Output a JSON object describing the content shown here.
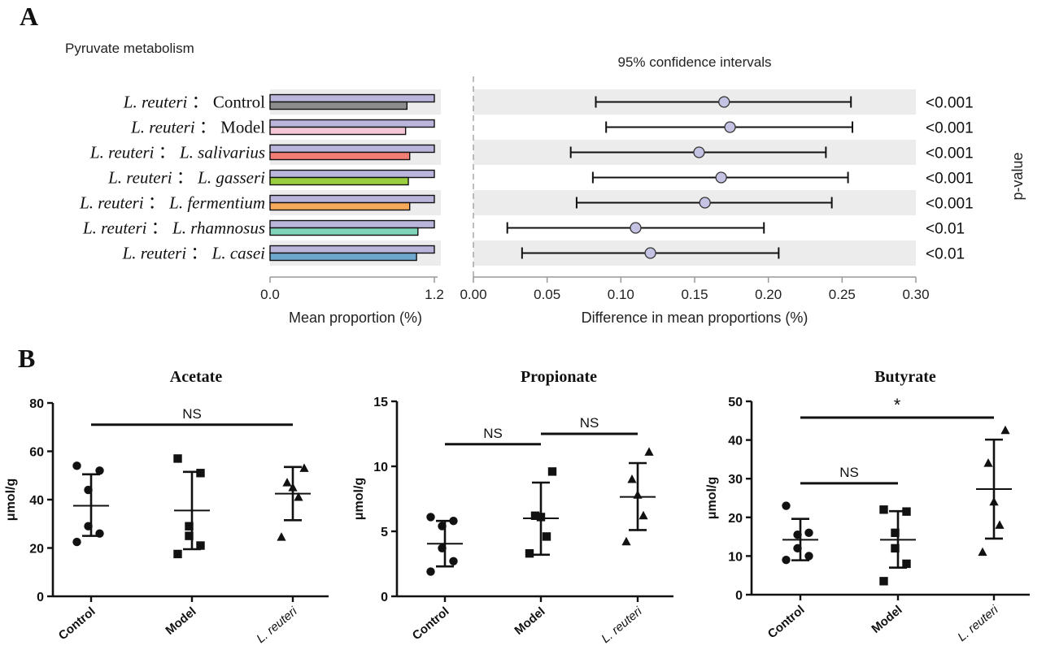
{
  "panel_a": {
    "letter": "A",
    "subtitle": "Pyruvate metabolism",
    "ci_title": "95% confidence intervals",
    "left_xlabel": "Mean proportion (%)",
    "right_xlabel": "Difference in mean proportions (%)",
    "pvalue_label": "p-value"
  },
  "panel_b": {
    "letter": "B"
  },
  "chart_data": [
    {
      "type": "bar",
      "xlabel": "Mean proportion (%)",
      "xlim": [
        0.0,
        1.2
      ],
      "xticks": [
        "0.0",
        "1.2"
      ],
      "comparison_separator": "：",
      "rows": [
        {
          "a": "L. reuteri",
          "b": "Control",
          "b_italic": false,
          "value_a": 1.2,
          "value_b": 1.0,
          "color_b": "#8c8c8c"
        },
        {
          "a": "L. reuteri",
          "b": "Model",
          "b_italic": false,
          "value_a": 1.2,
          "value_b": 0.99,
          "color_b": "#f4c6d6"
        },
        {
          "a": "L. reuteri",
          "b": "L. salivarius",
          "b_italic": true,
          "value_a": 1.2,
          "value_b": 1.02,
          "color_b": "#f27d74"
        },
        {
          "a": "L. reuteri",
          "b": "L. gasseri",
          "b_italic": true,
          "value_a": 1.2,
          "value_b": 1.01,
          "color_b": "#9ccf3f"
        },
        {
          "a": "L. reuteri",
          "b": "L. fermentium",
          "b_italic": true,
          "value_a": 1.2,
          "value_b": 1.02,
          "color_b": "#f5a95a"
        },
        {
          "a": "L. reuteri",
          "b": "L. rhamnosus",
          "b_italic": true,
          "value_a": 1.2,
          "value_b": 1.08,
          "color_b": "#7fd4bb"
        },
        {
          "a": "L. reuteri",
          "b": "L. casei",
          "b_italic": true,
          "value_a": 1.2,
          "value_b": 1.07,
          "color_b": "#6fa8cf"
        }
      ],
      "color_a": "#b9b5db"
    },
    {
      "type": "scatter",
      "title": "95% confidence intervals",
      "xlabel": "Difference in mean proportions (%)",
      "xlim": [
        0.0,
        0.3
      ],
      "xticks": [
        "0.00",
        "0.05",
        "0.10",
        "0.15",
        "0.20",
        "0.25",
        "0.30"
      ],
      "estimates": [
        {
          "diff": 0.17,
          "lo": 0.083,
          "hi": 0.256,
          "p": "<0.001"
        },
        {
          "diff": 0.174,
          "lo": 0.09,
          "hi": 0.257,
          "p": "<0.001"
        },
        {
          "diff": 0.153,
          "lo": 0.066,
          "hi": 0.239,
          "p": "<0.001"
        },
        {
          "diff": 0.168,
          "lo": 0.081,
          "hi": 0.254,
          "p": "<0.001"
        },
        {
          "diff": 0.157,
          "lo": 0.07,
          "hi": 0.243,
          "p": "<0.001"
        },
        {
          "diff": 0.11,
          "lo": 0.023,
          "hi": 0.197,
          "p": "<0.01"
        },
        {
          "diff": 0.12,
          "lo": 0.033,
          "hi": 0.207,
          "p": "<0.01"
        }
      ],
      "marker_color": "#c5c3e4",
      "pvalue_label": "p-value"
    },
    {
      "type": "scatter",
      "title": "Acetate",
      "ylabel": "μmol/g",
      "ylim": [
        0,
        80
      ],
      "yticks": [
        "0",
        "20",
        "40",
        "60",
        "80"
      ],
      "categories": [
        {
          "label": "Control",
          "italic": false
        },
        {
          "label": "Model",
          "italic": false
        },
        {
          "label": "L. reuteri",
          "italic": true
        }
      ],
      "groups": [
        {
          "marker": "circle",
          "points": [
            22.5,
            26,
            29,
            44,
            52,
            54
          ],
          "mean": 37.5,
          "sd_lo": 25,
          "sd_hi": 50.5
        },
        {
          "marker": "square",
          "points": [
            17.5,
            21,
            25,
            29,
            51,
            57
          ],
          "mean": 35.5,
          "sd_lo": 19.5,
          "sd_hi": 51.5
        },
        {
          "marker": "triangle",
          "points": [
            24.5,
            41,
            45,
            47,
            53
          ],
          "mean": 42.5,
          "sd_lo": 31.5,
          "sd_hi": 53.5
        }
      ],
      "brackets": [
        {
          "from": 0,
          "to": 2,
          "y": 71,
          "label": "NS"
        }
      ]
    },
    {
      "type": "scatter",
      "title": "Propionate",
      "ylabel": "μmol/g",
      "ylim": [
        0,
        15
      ],
      "yticks": [
        "0",
        "5",
        "10",
        "15"
      ],
      "categories": [
        {
          "label": "Control",
          "italic": false
        },
        {
          "label": "Model",
          "italic": false
        },
        {
          "label": "L. reuteri",
          "italic": true
        }
      ],
      "groups": [
        {
          "marker": "circle",
          "points": [
            1.9,
            2.7,
            3.7,
            5.4,
            5.8,
            6.1
          ],
          "mean": 4.05,
          "sd_lo": 2.3,
          "sd_hi": 5.8
        },
        {
          "marker": "square",
          "points": [
            3.3,
            4.6,
            6.1,
            6.2,
            9.6
          ],
          "mean": 6.0,
          "sd_lo": 3.2,
          "sd_hi": 8.75
        },
        {
          "marker": "triangle",
          "points": [
            4.2,
            6.2,
            7.8,
            9.0,
            11.1
          ],
          "mean": 7.65,
          "sd_lo": 5.1,
          "sd_hi": 10.25
        }
      ],
      "brackets": [
        {
          "from": 0,
          "to": 1,
          "y": 11.7,
          "label": "NS"
        },
        {
          "from": 1,
          "to": 2,
          "y": 12.5,
          "label": "NS"
        }
      ]
    },
    {
      "type": "scatter",
      "title": "Butyrate",
      "ylabel": "μmol/g",
      "ylim": [
        0,
        50
      ],
      "yticks": [
        "0",
        "10",
        "20",
        "30",
        "40",
        "50"
      ],
      "categories": [
        {
          "label": "Control",
          "italic": false
        },
        {
          "label": "Model",
          "italic": false
        },
        {
          "label": "L. reuteri",
          "italic": true
        }
      ],
      "groups": [
        {
          "marker": "circle",
          "points": [
            9,
            10,
            12,
            15.5,
            16,
            23
          ],
          "mean": 14.2,
          "sd_lo": 8.9,
          "sd_hi": 19.6
        },
        {
          "marker": "square",
          "points": [
            3.5,
            8,
            12,
            16,
            21.5,
            22
          ],
          "mean": 14.2,
          "sd_lo": 7,
          "sd_hi": 21.6
        },
        {
          "marker": "triangle",
          "points": [
            11,
            18,
            24,
            34,
            42.5
          ],
          "mean": 27.3,
          "sd_lo": 14.5,
          "sd_hi": 40.1
        }
      ],
      "brackets": [
        {
          "from": 0,
          "to": 1,
          "y": 28.8,
          "label": "NS"
        },
        {
          "from": 0,
          "to": 2,
          "y": 45.8,
          "label": "*"
        }
      ]
    }
  ]
}
